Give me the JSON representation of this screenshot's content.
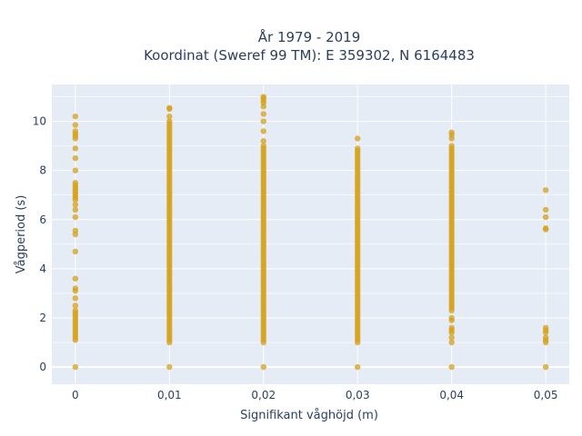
{
  "chart_data": {
    "type": "scatter",
    "title_line1": "År 1979 - 2019",
    "title_line2": "Koordinat (Sweref 99 TM): E 359302, N 6164483",
    "xlabel": "Signifikant våghöjd (m)",
    "ylabel": "Vågperiod (s)",
    "xlim": [
      -0.0025,
      0.0525
    ],
    "ylim": [
      -0.7,
      11.5
    ],
    "xticks": [
      0,
      0.01,
      0.02,
      0.03,
      0.04,
      0.05
    ],
    "xtick_labels": [
      "0",
      "0,01",
      "0,02",
      "0,03",
      "0,04",
      "0,05"
    ],
    "yticks": [
      0,
      2,
      4,
      6,
      8,
      10
    ],
    "ytick_labels": [
      "0",
      "2",
      "4",
      "6",
      "8",
      "10"
    ],
    "grid": true,
    "marker_color": "#D4A017",
    "series": [
      {
        "x": 0,
        "y": [
          0,
          1.1,
          1.2,
          1.3,
          1.4,
          1.5,
          1.6,
          1.7,
          1.8,
          1.9,
          2.0,
          2.1,
          2.2,
          2.3,
          2.5,
          2.8,
          3.1,
          3.2,
          3.6,
          4.7,
          5.4,
          5.55,
          6.1,
          6.4,
          6.6,
          6.8,
          6.9,
          7.0,
          7.1,
          7.2,
          7.3,
          7.4,
          7.5,
          8.0,
          8.5,
          8.9,
          9.3,
          9.4,
          9.5,
          9.6,
          9.85,
          10.2
        ]
      },
      {
        "x": 0.01,
        "y_min": 1.0,
        "y_max": 10.0,
        "y_extra": [
          0,
          10.2,
          10.5,
          10.55
        ]
      },
      {
        "x": 0.02,
        "y_min": 1.0,
        "y_max": 9.0,
        "y_extra": [
          0,
          9.2,
          9.6,
          10.0,
          10.3,
          10.6,
          10.75,
          10.85,
          10.95,
          11.0
        ]
      },
      {
        "x": 0.03,
        "y_min": 1.0,
        "y_max": 8.9,
        "y_extra": [
          0,
          9.3
        ]
      },
      {
        "x": 0.04,
        "y_min": 2.3,
        "y_max": 8.9,
        "y_extra": [
          0,
          1.0,
          1.2,
          1.4,
          1.5,
          1.6,
          1.9,
          2.0,
          9.0,
          9.3,
          9.45,
          9.55
        ]
      },
      {
        "x": 0.05,
        "y": [
          0,
          1.0,
          1.1,
          1.2,
          1.4,
          1.5,
          1.6,
          5.6,
          5.65,
          6.1,
          6.4,
          7.2
        ]
      }
    ]
  }
}
